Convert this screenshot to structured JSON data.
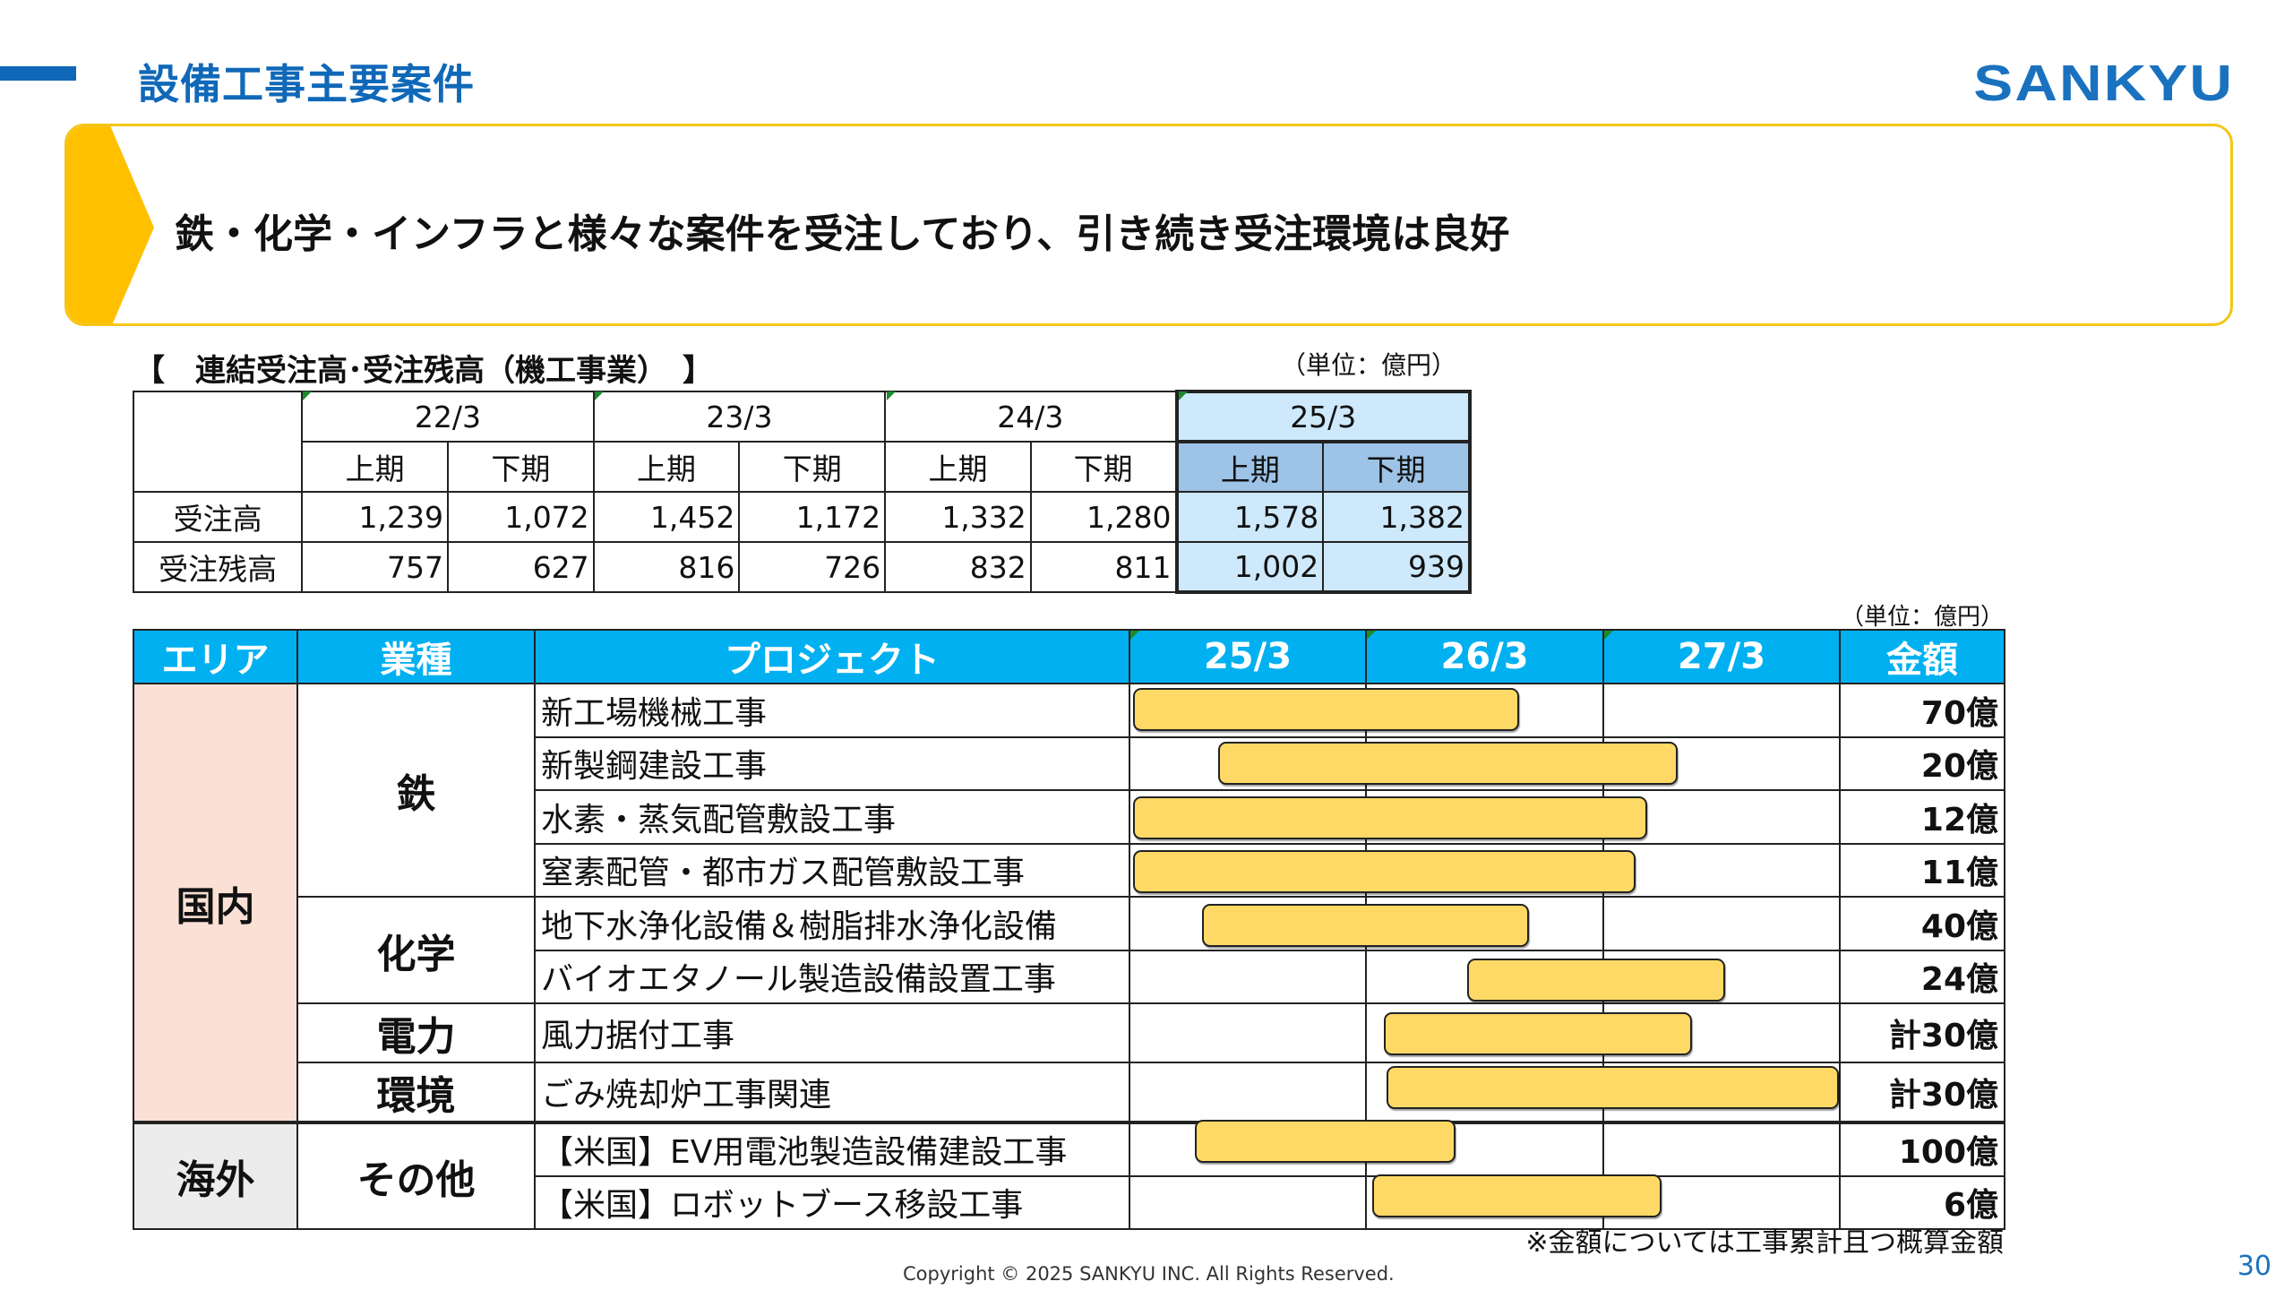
{
  "header": {
    "title": "設備工事主要案件",
    "logo": "SANKYU"
  },
  "banner": {
    "text": "鉄・化学・インフラと様々な案件を受注しており、引き続き受注環境は良好"
  },
  "orders_table": {
    "heading": "【　連結受注高･受注残高（機工事業）　】",
    "unit": "（単位：億円）",
    "years": [
      "22/3",
      "23/3",
      "24/3",
      "25/3"
    ],
    "halves": [
      "上期",
      "下期",
      "上期",
      "下期",
      "上期",
      "下期",
      "上期",
      "下期"
    ],
    "rows": [
      {
        "label": "受注高",
        "values": [
          "1,239",
          "1,072",
          "1,452",
          "1,172",
          "1,332",
          "1,280",
          "1,578",
          "1,382"
        ]
      },
      {
        "label": "受注残高",
        "values": [
          "757",
          "627",
          "816",
          "726",
          "832",
          "811",
          "1,002",
          "939"
        ]
      }
    ]
  },
  "projects_table": {
    "unit": "（単位：億円）",
    "headers": [
      "エリア",
      "業種",
      "プロジェクト",
      "25/3",
      "26/3",
      "27/3",
      "金額"
    ],
    "areas": [
      "国内",
      "海外"
    ],
    "industries": [
      "鉄",
      "化学",
      "電力",
      "環境",
      "その他"
    ],
    "rows": [
      {
        "project": "新工場機械工事",
        "amount": "70億",
        "bar_start": 0.02,
        "bar_end": 1.65
      },
      {
        "project": "新製鋼建設工事",
        "amount": "20億",
        "bar_start": 0.38,
        "bar_end": 2.32
      },
      {
        "project": "水素・蒸気配管敷設工事",
        "amount": "12億",
        "bar_start": 0.02,
        "bar_end": 2.19
      },
      {
        "project": "窒素配管・都市ガス配管敷設工事",
        "amount": "11億",
        "bar_start": 0.02,
        "bar_end": 2.14
      },
      {
        "project": "地下水浄化設備＆樹脂排水浄化設備",
        "amount": "40億",
        "bar_start": 0.31,
        "bar_end": 1.69
      },
      {
        "project": "バイオエタノール製造設備設置工事",
        "amount": "24億",
        "bar_start": 1.43,
        "bar_end": 2.52
      },
      {
        "project": "風力据付工事",
        "amount": "計30億",
        "bar_start": 1.08,
        "bar_end": 2.38
      },
      {
        "project": "ごみ焼却炉工事関連",
        "amount": "計30億",
        "bar_start": 1.09,
        "bar_end": 3.0
      },
      {
        "project": "【米国】EV用電池製造設備建設工事",
        "amount": "100億",
        "bar_start": 0.28,
        "bar_end": 1.38
      },
      {
        "project": "【米国】ロボットブース移設工事",
        "amount": "6億",
        "bar_start": 1.03,
        "bar_end": 2.25
      }
    ],
    "note": "※金額については工事累計且つ概算金額"
  },
  "footer": {
    "copyright": "Copyright © 2025 SANKYU INC. All Rights Reserved.",
    "page_number": "30"
  },
  "colors": {
    "brand_blue": "#1068b8",
    "header_cyan": "#00b0f0",
    "banner_yellow": "#f5c518",
    "bar_yellow": "#ffd966",
    "domestic_bg": "#fbe1d5",
    "overseas_bg": "#ececec",
    "highlight_light": "#cde9fb",
    "highlight_mid": "#9dc3e6"
  }
}
